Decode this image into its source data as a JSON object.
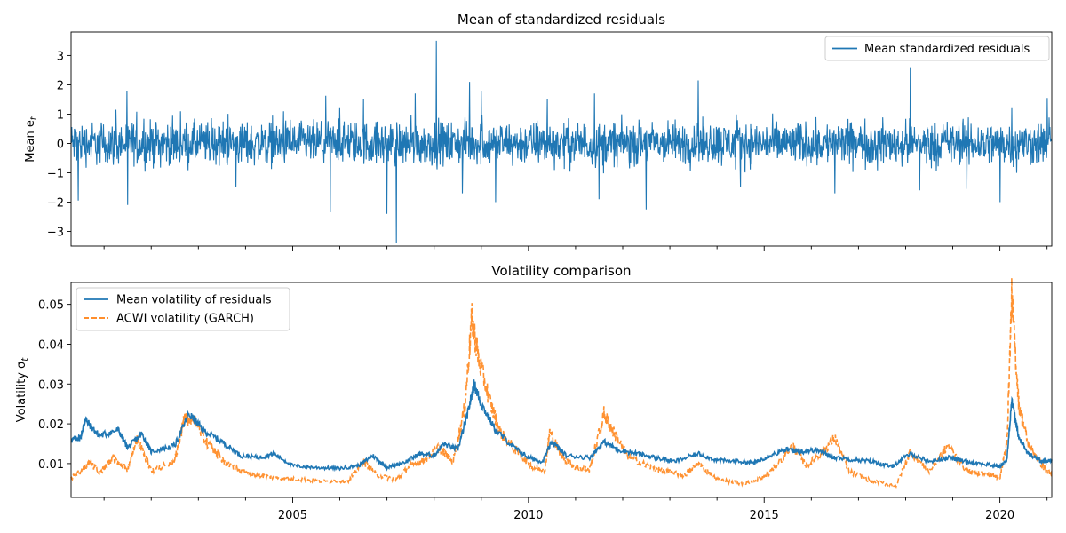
{
  "chart_data": [
    {
      "type": "line",
      "title": "Mean of standardized residuals",
      "ylabel": "Mean e_t",
      "ylabel_main": "Mean e",
      "ylabel_sub": "t",
      "xlim": [
        2000.3,
        2021.1
      ],
      "ylim": [
        -3.5,
        3.8
      ],
      "yticks": [
        -3,
        -2,
        -1,
        0,
        1,
        2,
        3
      ],
      "ytick_labels": [
        "−3",
        "−2",
        "−1",
        "0",
        "1",
        "2",
        "3"
      ],
      "legend_position": "top-right",
      "legend_labels": [
        "Mean standardized residuals"
      ],
      "series": [
        {
          "name": "Mean standardized residuals",
          "color": "#1f77b4",
          "style": "solid",
          "noise_amplitude": 0.45,
          "spikes": [
            {
              "x": 2000.45,
              "y": -1.95
            },
            {
              "x": 2001.25,
              "y": 1.15
            },
            {
              "x": 2001.5,
              "y": -2.1
            },
            {
              "x": 2003.8,
              "y": -1.5
            },
            {
              "x": 2005.8,
              "y": -2.35
            },
            {
              "x": 2006.0,
              "y": 1.2
            },
            {
              "x": 2006.5,
              "y": 1.5
            },
            {
              "x": 2007.0,
              "y": -2.4
            },
            {
              "x": 2007.2,
              "y": -3.4
            },
            {
              "x": 2007.6,
              "y": 1.7
            },
            {
              "x": 2008.05,
              "y": 3.5
            },
            {
              "x": 2008.6,
              "y": -1.7
            },
            {
              "x": 2008.75,
              "y": 2.1
            },
            {
              "x": 2009.0,
              "y": 1.8
            },
            {
              "x": 2009.3,
              "y": -2.0
            },
            {
              "x": 2010.4,
              "y": 1.5
            },
            {
              "x": 2011.4,
              "y": 1.7
            },
            {
              "x": 2011.5,
              "y": -1.9
            },
            {
              "x": 2012.5,
              "y": -2.25
            },
            {
              "x": 2013.6,
              "y": 2.15
            },
            {
              "x": 2014.5,
              "y": -1.5
            },
            {
              "x": 2016.5,
              "y": -1.7
            },
            {
              "x": 2018.1,
              "y": 2.6
            },
            {
              "x": 2018.3,
              "y": -1.6
            },
            {
              "x": 2019.3,
              "y": -1.55
            },
            {
              "x": 2020.0,
              "y": -2.0
            },
            {
              "x": 2020.25,
              "y": 1.2
            },
            {
              "x": 2021.0,
              "y": 1.55
            }
          ]
        }
      ]
    },
    {
      "type": "line",
      "title": "Volatility comparison",
      "ylabel": "Volatility σ_t",
      "ylabel_main": "Volatility σ",
      "ylabel_sub": "t",
      "xlim": [
        2000.3,
        2021.1
      ],
      "ylim": [
        0.0015,
        0.0555
      ],
      "yticks": [
        0.01,
        0.02,
        0.03,
        0.04,
        0.05
      ],
      "ytick_labels": [
        "0.01",
        "0.02",
        "0.03",
        "0.04",
        "0.05"
      ],
      "xticks": [
        2005,
        2010,
        2015,
        2020
      ],
      "xtick_labels": [
        "2005",
        "2010",
        "2015",
        "2020"
      ],
      "legend_position": "top-left",
      "legend_labels": [
        "Mean volatility of residuals",
        "ACWI volatility (GARCH)"
      ],
      "series": [
        {
          "name": "Mean volatility of residuals",
          "color": "#1f77b4",
          "style": "solid",
          "points": [
            [
              2000.3,
              0.016
            ],
            [
              2000.5,
              0.0165
            ],
            [
              2000.6,
              0.021
            ],
            [
              2000.9,
              0.017
            ],
            [
              2001.3,
              0.0185
            ],
            [
              2001.5,
              0.014
            ],
            [
              2001.8,
              0.0175
            ],
            [
              2002.0,
              0.013
            ],
            [
              2002.5,
              0.0145
            ],
            [
              2002.8,
              0.0225
            ],
            [
              2003.1,
              0.0185
            ],
            [
              2003.5,
              0.0155
            ],
            [
              2003.9,
              0.012
            ],
            [
              2004.3,
              0.0115
            ],
            [
              2004.6,
              0.0125
            ],
            [
              2005.0,
              0.0095
            ],
            [
              2005.5,
              0.009
            ],
            [
              2006.0,
              0.0088
            ],
            [
              2006.4,
              0.0095
            ],
            [
              2006.7,
              0.012
            ],
            [
              2007.0,
              0.009
            ],
            [
              2007.4,
              0.0105
            ],
            [
              2007.7,
              0.0125
            ],
            [
              2008.0,
              0.012
            ],
            [
              2008.2,
              0.015
            ],
            [
              2008.5,
              0.0135
            ],
            [
              2008.7,
              0.022
            ],
            [
              2008.85,
              0.03
            ],
            [
              2009.0,
              0.025
            ],
            [
              2009.3,
              0.0185
            ],
            [
              2009.7,
              0.014
            ],
            [
              2010.0,
              0.0115
            ],
            [
              2010.3,
              0.0105
            ],
            [
              2010.5,
              0.0155
            ],
            [
              2010.8,
              0.012
            ],
            [
              2011.3,
              0.0115
            ],
            [
              2011.6,
              0.0155
            ],
            [
              2011.9,
              0.0135
            ],
            [
              2012.3,
              0.0125
            ],
            [
              2012.7,
              0.0115
            ],
            [
              2013.1,
              0.0105
            ],
            [
              2013.6,
              0.0125
            ],
            [
              2014.0,
              0.0108
            ],
            [
              2014.5,
              0.0105
            ],
            [
              2014.8,
              0.0102
            ],
            [
              2015.1,
              0.012
            ],
            [
              2015.5,
              0.0135
            ],
            [
              2015.8,
              0.013
            ],
            [
              2016.1,
              0.0135
            ],
            [
              2016.5,
              0.0115
            ],
            [
              2016.9,
              0.011
            ],
            [
              2017.3,
              0.0105
            ],
            [
              2017.7,
              0.0092
            ],
            [
              2018.1,
              0.0125
            ],
            [
              2018.5,
              0.0105
            ],
            [
              2018.9,
              0.0115
            ],
            [
              2019.3,
              0.0105
            ],
            [
              2019.7,
              0.0098
            ],
            [
              2020.0,
              0.0092
            ],
            [
              2020.15,
              0.011
            ],
            [
              2020.25,
              0.026
            ],
            [
              2020.4,
              0.0165
            ],
            [
              2020.6,
              0.0125
            ],
            [
              2020.9,
              0.0105
            ],
            [
              2021.1,
              0.011
            ]
          ]
        },
        {
          "name": "ACWI volatility (GARCH)",
          "color": "#ff7f0e",
          "style": "dashed",
          "points": [
            [
              2000.3,
              0.0065
            ],
            [
              2000.5,
              0.008
            ],
            [
              2000.7,
              0.0105
            ],
            [
              2000.9,
              0.0075
            ],
            [
              2001.2,
              0.0115
            ],
            [
              2001.5,
              0.0085
            ],
            [
              2001.7,
              0.0165
            ],
            [
              2002.0,
              0.008
            ],
            [
              2002.5,
              0.011
            ],
            [
              2002.7,
              0.021
            ],
            [
              2002.9,
              0.0215
            ],
            [
              2003.2,
              0.015
            ],
            [
              2003.5,
              0.011
            ],
            [
              2003.9,
              0.008
            ],
            [
              2004.3,
              0.007
            ],
            [
              2004.7,
              0.0065
            ],
            [
              2005.2,
              0.006
            ],
            [
              2005.7,
              0.0055
            ],
            [
              2006.2,
              0.0058
            ],
            [
              2006.5,
              0.0105
            ],
            [
              2006.8,
              0.007
            ],
            [
              2007.2,
              0.006
            ],
            [
              2007.5,
              0.0095
            ],
            [
              2007.8,
              0.011
            ],
            [
              2008.1,
              0.014
            ],
            [
              2008.4,
              0.0105
            ],
            [
              2008.65,
              0.024
            ],
            [
              2008.8,
              0.0465
            ],
            [
              2008.95,
              0.036
            ],
            [
              2009.2,
              0.025
            ],
            [
              2009.4,
              0.018
            ],
            [
              2009.8,
              0.0125
            ],
            [
              2010.1,
              0.009
            ],
            [
              2010.35,
              0.0085
            ],
            [
              2010.45,
              0.018
            ],
            [
              2010.7,
              0.012
            ],
            [
              2011.0,
              0.009
            ],
            [
              2011.3,
              0.0085
            ],
            [
              2011.6,
              0.0225
            ],
            [
              2011.8,
              0.018
            ],
            [
              2012.1,
              0.012
            ],
            [
              2012.5,
              0.0095
            ],
            [
              2012.9,
              0.008
            ],
            [
              2013.3,
              0.007
            ],
            [
              2013.6,
              0.01
            ],
            [
              2014.0,
              0.006
            ],
            [
              2014.5,
              0.005
            ],
            [
              2014.8,
              0.0055
            ],
            [
              2015.1,
              0.0075
            ],
            [
              2015.6,
              0.0145
            ],
            [
              2015.9,
              0.0095
            ],
            [
              2016.2,
              0.0125
            ],
            [
              2016.5,
              0.0165
            ],
            [
              2016.8,
              0.008
            ],
            [
              2017.3,
              0.0055
            ],
            [
              2017.8,
              0.0045
            ],
            [
              2018.1,
              0.013
            ],
            [
              2018.5,
              0.008
            ],
            [
              2018.9,
              0.0145
            ],
            [
              2019.3,
              0.008
            ],
            [
              2019.7,
              0.0075
            ],
            [
              2020.0,
              0.0065
            ],
            [
              2020.15,
              0.015
            ],
            [
              2020.25,
              0.052
            ],
            [
              2020.4,
              0.025
            ],
            [
              2020.6,
              0.015
            ],
            [
              2020.9,
              0.0095
            ],
            [
              2021.1,
              0.007
            ]
          ]
        }
      ]
    }
  ],
  "colors": {
    "series_blue": "#1f77b4",
    "series_orange": "#ff7f0e",
    "legend_border": "#cccccc"
  }
}
